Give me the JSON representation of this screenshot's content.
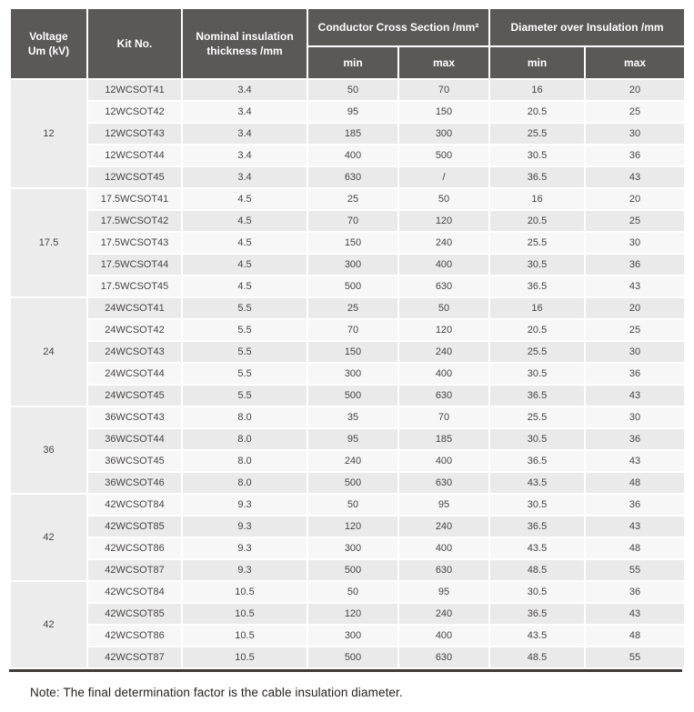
{
  "colors": {
    "header_bg": "#5b5858",
    "header_text": "#ffffff",
    "row_dark": "#eaeaea",
    "row_light": "#f7f7f7",
    "group_cell_bg": "#ececec",
    "data_text": "#474443",
    "bottom_rule": "#3e3a39"
  },
  "table": {
    "header": {
      "voltage_line1": "Voltage",
      "voltage_line2": "Um (kV)",
      "kit_no": "Kit No.",
      "nominal_line1": "Nominal insulation",
      "nominal_line2": "thickness /mm",
      "conductor_group": "Conductor Cross Section /mm²",
      "diameter_group": "Diameter over Insulation /mm",
      "min": "min",
      "max": "max"
    },
    "groups": [
      {
        "voltage": "12",
        "rows": [
          {
            "kit": "12WCSOT41",
            "thickness": "3.4",
            "ccs_min": "50",
            "ccs_max": "70",
            "dia_min": "16",
            "dia_max": "20"
          },
          {
            "kit": "12WCSOT42",
            "thickness": "3.4",
            "ccs_min": "95",
            "ccs_max": "150",
            "dia_min": "20.5",
            "dia_max": "25"
          },
          {
            "kit": "12WCSOT43",
            "thickness": "3.4",
            "ccs_min": "185",
            "ccs_max": "300",
            "dia_min": "25.5",
            "dia_max": "30"
          },
          {
            "kit": "12WCSOT44",
            "thickness": "3.4",
            "ccs_min": "400",
            "ccs_max": "500",
            "dia_min": "30.5",
            "dia_max": "36"
          },
          {
            "kit": "12WCSOT45",
            "thickness": "3.4",
            "ccs_min": "630",
            "ccs_max": "/",
            "dia_min": "36.5",
            "dia_max": "43"
          }
        ]
      },
      {
        "voltage": "17.5",
        "rows": [
          {
            "kit": "17.5WCSOT41",
            "thickness": "4.5",
            "ccs_min": "25",
            "ccs_max": "50",
            "dia_min": "16",
            "dia_max": "20"
          },
          {
            "kit": "17.5WCSOT42",
            "thickness": "4.5",
            "ccs_min": "70",
            "ccs_max": "120",
            "dia_min": "20.5",
            "dia_max": "25"
          },
          {
            "kit": "17.5WCSOT43",
            "thickness": "4.5",
            "ccs_min": "150",
            "ccs_max": "240",
            "dia_min": "25.5",
            "dia_max": "30"
          },
          {
            "kit": "17.5WCSOT44",
            "thickness": "4.5",
            "ccs_min": "300",
            "ccs_max": "400",
            "dia_min": "30.5",
            "dia_max": "36"
          },
          {
            "kit": "17.5WCSOT45",
            "thickness": "4.5",
            "ccs_min": "500",
            "ccs_max": "630",
            "dia_min": "36.5",
            "dia_max": "43"
          }
        ]
      },
      {
        "voltage": "24",
        "rows": [
          {
            "kit": "24WCSOT41",
            "thickness": "5.5",
            "ccs_min": "25",
            "ccs_max": "50",
            "dia_min": "16",
            "dia_max": "20"
          },
          {
            "kit": "24WCSOT42",
            "thickness": "5.5",
            "ccs_min": "70",
            "ccs_max": "120",
            "dia_min": "20.5",
            "dia_max": "25"
          },
          {
            "kit": "24WCSOT43",
            "thickness": "5.5",
            "ccs_min": "150",
            "ccs_max": "240",
            "dia_min": "25.5",
            "dia_max": "30"
          },
          {
            "kit": "24WCSOT44",
            "thickness": "5.5",
            "ccs_min": "300",
            "ccs_max": "400",
            "dia_min": "30.5",
            "dia_max": "36"
          },
          {
            "kit": "24WCSOT45",
            "thickness": "5.5",
            "ccs_min": "500",
            "ccs_max": "630",
            "dia_min": "36.5",
            "dia_max": "43"
          }
        ]
      },
      {
        "voltage": "36",
        "rows": [
          {
            "kit": "36WCSOT43",
            "thickness": "8.0",
            "ccs_min": "35",
            "ccs_max": "70",
            "dia_min": "25.5",
            "dia_max": "30"
          },
          {
            "kit": "36WCSOT44",
            "thickness": "8.0",
            "ccs_min": "95",
            "ccs_max": "185",
            "dia_min": "30.5",
            "dia_max": "36"
          },
          {
            "kit": "36WCSOT45",
            "thickness": "8.0",
            "ccs_min": "240",
            "ccs_max": "400",
            "dia_min": "36.5",
            "dia_max": "43"
          },
          {
            "kit": "36WCSOT46",
            "thickness": "8.0",
            "ccs_min": "500",
            "ccs_max": "630",
            "dia_min": "43.5",
            "dia_max": "48"
          }
        ]
      },
      {
        "voltage": "42",
        "rows": [
          {
            "kit": "42WCSOT84",
            "thickness": "9.3",
            "ccs_min": "50",
            "ccs_max": "95",
            "dia_min": "30.5",
            "dia_max": "36"
          },
          {
            "kit": "42WCSOT85",
            "thickness": "9.3",
            "ccs_min": "120",
            "ccs_max": "240",
            "dia_min": "36.5",
            "dia_max": "43"
          },
          {
            "kit": "42WCSOT86",
            "thickness": "9.3",
            "ccs_min": "300",
            "ccs_max": "400",
            "dia_min": "43.5",
            "dia_max": "48"
          },
          {
            "kit": "42WCSOT87",
            "thickness": "9.3",
            "ccs_min": "500",
            "ccs_max": "630",
            "dia_min": "48.5",
            "dia_max": "55"
          }
        ]
      },
      {
        "voltage": "42",
        "rows": [
          {
            "kit": "42WCSOT84",
            "thickness": "10.5",
            "ccs_min": "50",
            "ccs_max": "95",
            "dia_min": "30.5",
            "dia_max": "36"
          },
          {
            "kit": "42WCSOT85",
            "thickness": "10.5",
            "ccs_min": "120",
            "ccs_max": "240",
            "dia_min": "36.5",
            "dia_max": "43"
          },
          {
            "kit": "42WCSOT86",
            "thickness": "10.5",
            "ccs_min": "300",
            "ccs_max": "400",
            "dia_min": "43.5",
            "dia_max": "48"
          },
          {
            "kit": "42WCSOT87",
            "thickness": "10.5",
            "ccs_min": "500",
            "ccs_max": "630",
            "dia_min": "48.5",
            "dia_max": "55"
          }
        ]
      }
    ]
  },
  "note": "Note: The final determination factor is the cable insulation diameter."
}
